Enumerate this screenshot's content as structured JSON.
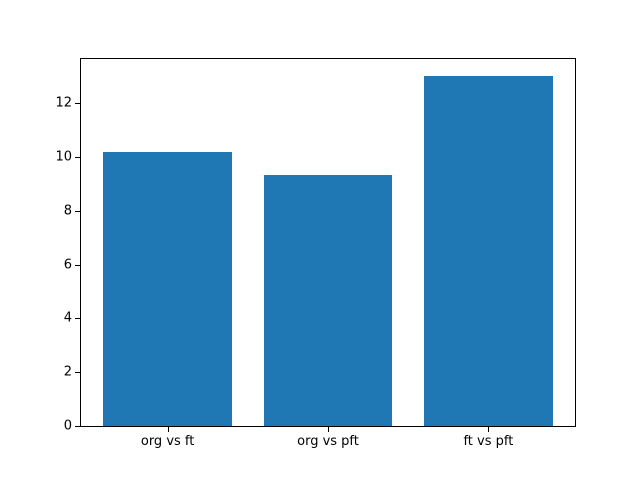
{
  "figure": {
    "background": "#ffffff",
    "text_color": "#000000",
    "spine_color": "#000000"
  },
  "chart_data": {
    "type": "bar",
    "categories": [
      "org vs ft",
      "org vs pft",
      "ft vs pft"
    ],
    "values": [
      10.2,
      9.35,
      13.0
    ],
    "title": "",
    "xlabel": "",
    "ylabel": "",
    "ylim": [
      0,
      13.65
    ],
    "xlim": [
      -0.54,
      2.54
    ],
    "yticks": [
      0,
      2,
      4,
      6,
      8,
      10,
      12
    ],
    "bar_width": 0.8,
    "bar_color": "#1f77b4",
    "grid": false,
    "legend": "none"
  }
}
